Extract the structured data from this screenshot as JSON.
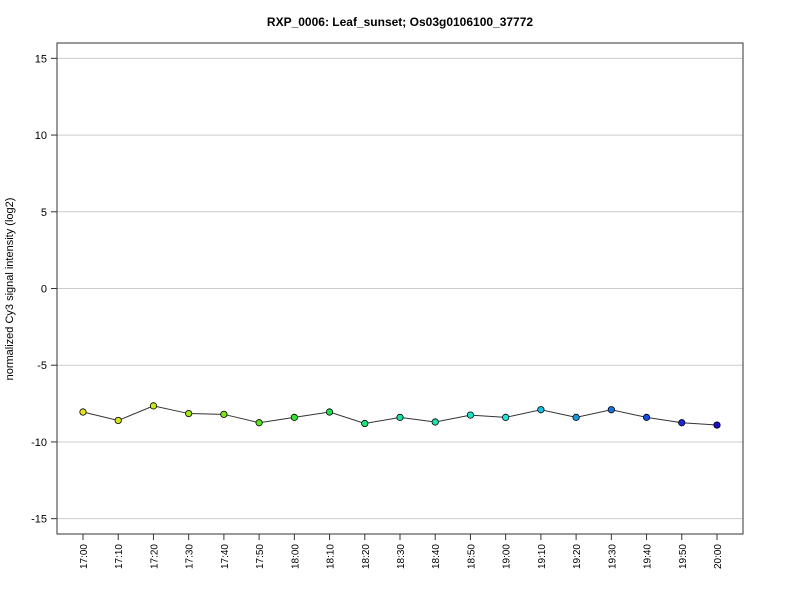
{
  "chart_data": {
    "type": "line",
    "title": "RXP_0006: Leaf_sunset; Os03g0106100_37772",
    "xlabel": "",
    "ylabel": "normalized Cy3 signal intensity (log2)",
    "ylim": [
      -16,
      16
    ],
    "yticks": [
      -15,
      -10,
      -5,
      0,
      5,
      10,
      15
    ],
    "grid": true,
    "categories": [
      "17:00",
      "17:10",
      "17:20",
      "17:30",
      "17:40",
      "17:50",
      "18:00",
      "18:10",
      "18:20",
      "18:30",
      "18:40",
      "18:50",
      "19:00",
      "19:10",
      "19:20",
      "19:30",
      "19:40",
      "19:50",
      "20:00"
    ],
    "series": [
      {
        "values": [
          -8.05,
          -8.6,
          -7.65,
          -8.15,
          -8.2,
          -8.75,
          -8.4,
          -8.05,
          -8.8,
          -8.4,
          -8.7,
          -8.25,
          -8.4,
          -7.9,
          -8.4,
          -7.9,
          -8.4,
          -8.75,
          -8.9
        ],
        "line_color": "#333333",
        "point_colors": [
          "#e5e51a",
          "#d9e51a",
          "#c8ec1a",
          "#a6e51a",
          "#7fe51a",
          "#55e51a",
          "#33e533",
          "#1ae550",
          "#1ae57a",
          "#1ae599",
          "#1ae5b0",
          "#1ae5c8",
          "#1ae5e0",
          "#1ac0e5",
          "#1a99e5",
          "#1a73e5",
          "#1a4ce5",
          "#1a26d9",
          "#1a0fcc"
        ]
      }
    ]
  }
}
